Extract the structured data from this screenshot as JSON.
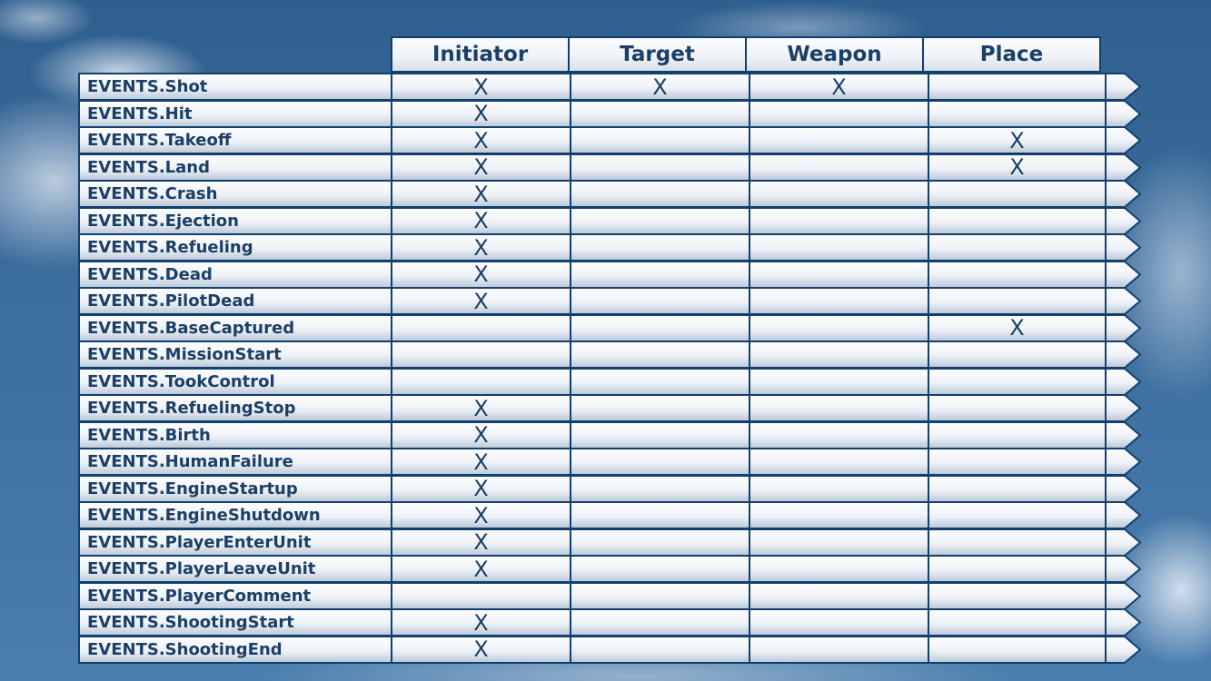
{
  "colors": {
    "border": "#12406e",
    "text": "#1b3f66"
  },
  "columns": [
    "Initiator",
    "Target",
    "Weapon",
    "Place"
  ],
  "mark": "X",
  "rows": [
    {
      "label": "EVENTS.Shot",
      "marks": [
        1,
        1,
        1,
        0
      ]
    },
    {
      "label": "EVENTS.Hit",
      "marks": [
        1,
        0,
        0,
        0
      ]
    },
    {
      "label": "EVENTS.Takeoff",
      "marks": [
        1,
        0,
        0,
        1
      ]
    },
    {
      "label": "EVENTS.Land",
      "marks": [
        1,
        0,
        0,
        1
      ]
    },
    {
      "label": "EVENTS.Crash",
      "marks": [
        1,
        0,
        0,
        0
      ]
    },
    {
      "label": "EVENTS.Ejection",
      "marks": [
        1,
        0,
        0,
        0
      ]
    },
    {
      "label": "EVENTS.Refueling",
      "marks": [
        1,
        0,
        0,
        0
      ]
    },
    {
      "label": "EVENTS.Dead",
      "marks": [
        1,
        0,
        0,
        0
      ]
    },
    {
      "label": "EVENTS.PilotDead",
      "marks": [
        1,
        0,
        0,
        0
      ]
    },
    {
      "label": "EVENTS.BaseCaptured",
      "marks": [
        0,
        0,
        0,
        1
      ]
    },
    {
      "label": "EVENTS.MissionStart",
      "marks": [
        0,
        0,
        0,
        0
      ]
    },
    {
      "label": "EVENTS.TookControl",
      "marks": [
        0,
        0,
        0,
        0
      ]
    },
    {
      "label": "EVENTS.RefuelingStop",
      "marks": [
        1,
        0,
        0,
        0
      ]
    },
    {
      "label": "EVENTS.Birth",
      "marks": [
        1,
        0,
        0,
        0
      ]
    },
    {
      "label": "EVENTS.HumanFailure",
      "marks": [
        1,
        0,
        0,
        0
      ]
    },
    {
      "label": "EVENTS.EngineStartup",
      "marks": [
        1,
        0,
        0,
        0
      ]
    },
    {
      "label": "EVENTS.EngineShutdown",
      "marks": [
        1,
        0,
        0,
        0
      ]
    },
    {
      "label": "EVENTS.PlayerEnterUnit",
      "marks": [
        1,
        0,
        0,
        0
      ]
    },
    {
      "label": "EVENTS.PlayerLeaveUnit",
      "marks": [
        1,
        0,
        0,
        0
      ]
    },
    {
      "label": "EVENTS.PlayerComment",
      "marks": [
        0,
        0,
        0,
        0
      ]
    },
    {
      "label": "EVENTS.ShootingStart",
      "marks": [
        1,
        0,
        0,
        0
      ]
    },
    {
      "label": "EVENTS.ShootingEnd",
      "marks": [
        1,
        0,
        0,
        0
      ]
    }
  ]
}
